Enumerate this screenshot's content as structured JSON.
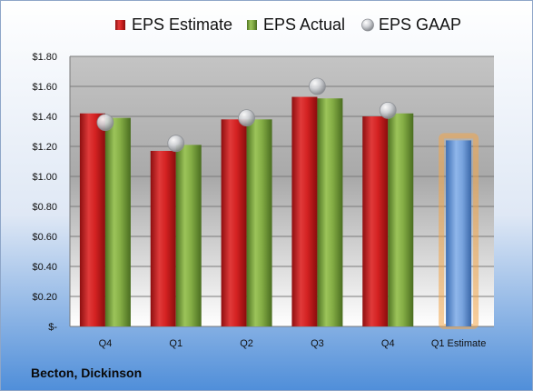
{
  "company": "Becton, Dickinson",
  "colors": {
    "estimate": "#c81a1a",
    "actual": "#7aa23a",
    "gaap": "#b9bcc0",
    "estimate_bar": "#6e9ad6",
    "estimate_glow": "#f2a64a"
  },
  "chart_data": {
    "type": "bar",
    "categories": [
      "Q4",
      "Q1",
      "Q2",
      "Q3",
      "Q4",
      "Q1 Estimate"
    ],
    "legend_position": "top",
    "grid": true,
    "ylim": [
      0,
      1.8
    ],
    "y_ticks": [
      "$-",
      "$0.20",
      "$0.40",
      "$0.60",
      "$0.80",
      "$1.00",
      "$1.20",
      "$1.40",
      "$1.60",
      "$1.80"
    ],
    "y_tick_values": [
      0,
      0.2,
      0.4,
      0.6,
      0.8,
      1.0,
      1.2,
      1.4,
      1.6,
      1.8
    ],
    "series": [
      {
        "name": "EPS Estimate",
        "kind": "bar",
        "values": [
          1.42,
          1.17,
          1.38,
          1.53,
          1.4,
          null
        ]
      },
      {
        "name": "EPS Actual",
        "kind": "bar",
        "values": [
          1.39,
          1.21,
          1.38,
          1.52,
          1.42,
          null
        ]
      },
      {
        "name": "EPS GAAP",
        "kind": "marker",
        "values": [
          1.36,
          1.22,
          1.39,
          1.6,
          1.44,
          null
        ]
      }
    ],
    "forecast": {
      "category": "Q1 Estimate",
      "value": 1.24
    }
  }
}
